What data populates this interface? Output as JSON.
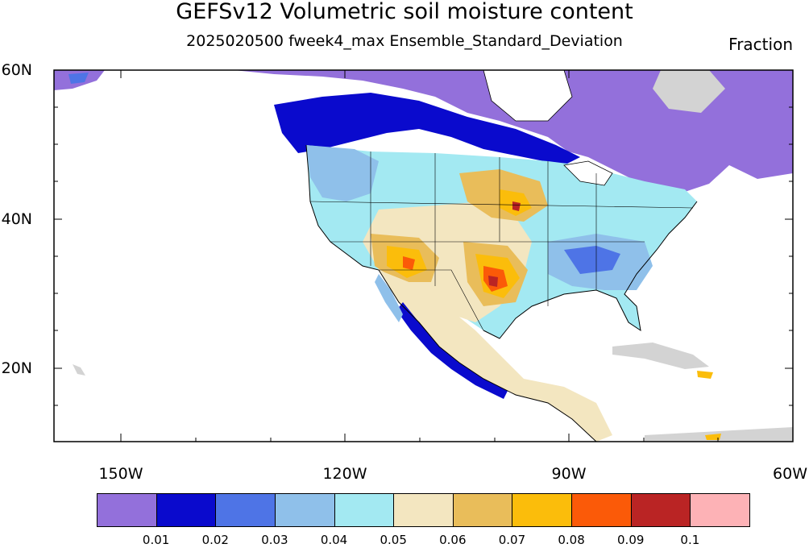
{
  "title": "GEFSv12 Volumetric soil moisture content",
  "subtitle": "2025020500 fweek4_max Ensemble_Standard_Deviation",
  "units": "Fraction",
  "lat_labels": [
    "60N",
    "40N",
    "20N"
  ],
  "lon_labels": [
    "150W",
    "120W",
    "90W",
    "60W"
  ],
  "colorbar": {
    "colors": [
      "#9370db",
      "#0a0acd",
      "#4e74e6",
      "#8fc0ea",
      "#a3e9f2",
      "#f3e6c0",
      "#e9bd5a",
      "#fbbd0b",
      "#fb5a08",
      "#ba2424",
      "#fdb2b6"
    ],
    "labels": [
      "0.01",
      "0.02",
      "0.03",
      "0.04",
      "0.05",
      "0.06",
      "0.07",
      "0.08",
      "0.09",
      "0.1"
    ]
  },
  "map": {
    "ocean_color": "#ffffff",
    "land_missing_color": "#d3d3d3",
    "border_color": "#000000"
  }
}
